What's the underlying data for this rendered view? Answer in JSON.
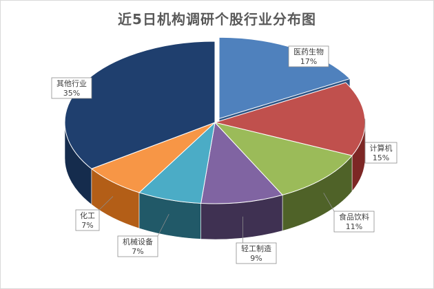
{
  "chart_data": {
    "type": "pie",
    "title": "近5日机构调研个股行业分布图",
    "slices": [
      {
        "name": "医药生物",
        "value": 17,
        "label": "17%",
        "color": "#4f81bd",
        "side": "#2e5585"
      },
      {
        "name": "计算机",
        "value": 15,
        "label": "15%",
        "color": "#c0504d",
        "side": "#7d2725"
      },
      {
        "name": "食品饮料",
        "value": 11,
        "label": "11%",
        "color": "#9bbb59",
        "side": "#4f6228"
      },
      {
        "name": "轻工制造",
        "value": 9,
        "label": "9%",
        "color": "#8064a2",
        "side": "#3f3152"
      },
      {
        "name": "机械设备",
        "value": 7,
        "label": "7%",
        "color": "#4bacc6",
        "side": "#215968"
      },
      {
        "name": "化工",
        "value": 7,
        "label": "7%",
        "color": "#f79646",
        "side": "#b35e17"
      },
      {
        "name": "其他行业",
        "value": 35,
        "label": "35%",
        "color": "#1f3f6e",
        "side": "#152c4d"
      }
    ],
    "start_angle_deg": 0,
    "exploded": "医药生物"
  }
}
